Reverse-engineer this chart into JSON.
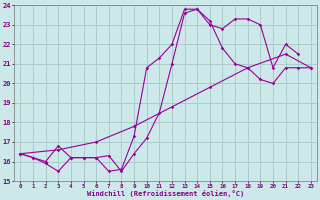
{
  "xlabel": "Windchill (Refroidissement éolien,°C)",
  "xlim": [
    -0.5,
    23.5
  ],
  "ylim": [
    15,
    24
  ],
  "yticks": [
    15,
    16,
    17,
    18,
    19,
    20,
    21,
    22,
    23,
    24
  ],
  "xticks": [
    0,
    1,
    2,
    3,
    4,
    5,
    6,
    7,
    8,
    9,
    10,
    11,
    12,
    13,
    14,
    15,
    16,
    17,
    18,
    19,
    20,
    21,
    22,
    23
  ],
  "background_color": "#cce8e8",
  "grid_color": "#aacccc",
  "line_color": "#990099",
  "series": [
    {
      "x": [
        0,
        1,
        2,
        3,
        4,
        5,
        6,
        7,
        8,
        9,
        10,
        11,
        12,
        13,
        14,
        15,
        16,
        17,
        18,
        19,
        20,
        21,
        22,
        23
      ],
      "y": [
        16.4,
        16.2,
        15.9,
        15.5,
        16.2,
        16.2,
        16.2,
        15.5,
        15.6,
        17.3,
        20.8,
        21.3,
        22.0,
        23.8,
        23.8,
        23.0,
        22.8,
        23.3,
        23.3,
        23.0,
        20.8,
        22.0,
        21.5,
        null
      ]
    },
    {
      "x": [
        0,
        1,
        2,
        3,
        4,
        5,
        6,
        7,
        8,
        9,
        10,
        11,
        12,
        13,
        14,
        15,
        16,
        17,
        18,
        19,
        20,
        21,
        22,
        23
      ],
      "y": [
        16.4,
        16.2,
        16.0,
        16.8,
        16.2,
        16.2,
        16.2,
        16.3,
        15.5,
        16.4,
        17.2,
        18.5,
        21.0,
        23.6,
        23.8,
        23.2,
        21.8,
        21.0,
        20.8,
        20.2,
        20.0,
        20.8,
        20.8,
        20.8
      ]
    },
    {
      "x": [
        0,
        3,
        6,
        9,
        12,
        15,
        18,
        21,
        23
      ],
      "y": [
        16.4,
        16.6,
        17.0,
        17.8,
        18.8,
        19.8,
        20.8,
        21.5,
        20.8
      ]
    }
  ]
}
